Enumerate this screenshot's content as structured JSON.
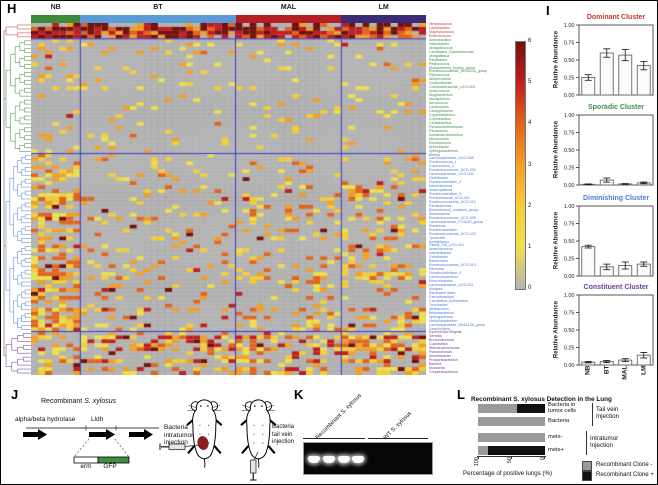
{
  "panels": {
    "h": "H",
    "i": "I",
    "j": "J",
    "k": "K",
    "l": "L"
  },
  "chart_data": {
    "heatmap": {
      "type": "heatmap",
      "seed": 1234,
      "value_range": [
        0,
        6
      ],
      "colorbar_ticks": [
        6,
        5,
        4,
        3,
        2,
        1,
        0
      ],
      "palette": [
        "#b4b4b4",
        "#efe04e",
        "#f5cf38",
        "#f2a028",
        "#e4651c",
        "#c21f1f",
        "#741010"
      ],
      "grid_color": "rgba(60,60,60,0.18)",
      "separator_color": "#3a3ad0",
      "groups": [
        {
          "label": "NB",
          "color": "#3e8a3c",
          "cols": 7
        },
        {
          "label": "BT",
          "color": "#5b9bd5",
          "cols": 22
        },
        {
          "label": "MAL",
          "color": "#b41f24",
          "cols": 15
        },
        {
          "label": "LM",
          "color": "#3b2a75",
          "cols": 12
        }
      ],
      "clusters": [
        {
          "name": "Dominant",
          "label_color": "#c43c35",
          "dendro_color": "#d46a64",
          "fill_prob": 0.96,
          "group_mult": [
            1,
            1,
            1,
            1
          ],
          "val_min": 3,
          "val_max": 6,
          "hot_prob": 0.25,
          "taxa": [
            "Streptococcus",
            "Lactobacillus",
            "Staphylococcus",
            "Enterococcus"
          ]
        },
        {
          "name": "Sporadic",
          "label_color": "#3f8f42",
          "dendro_color": "#6aa86d",
          "fill_prob": 0.09,
          "group_mult": [
            1.4,
            1.0,
            0.9,
            0.9
          ],
          "val_min": 1,
          "val_max": 3,
          "hot_prob": 0.1,
          "taxa": [
            "Actinobacillus",
            "Helicobacter",
            "Jeotgalicoccus",
            "Candidatus_Saccharimonas",
            "Jeotgalibaca",
            "Parvibacter",
            "Pediococcus",
            "[Eubacterium]_brachy_group",
            "Ruminococcaceae_NK4A214_group",
            "Peptococcus",
            "Alloprevotella",
            "Gordonibacter",
            "Coriobacteriaceae_UCG-002",
            "Anaerovorax",
            "Mogibacterium",
            "Mucispirillum",
            "Aerococcus",
            "Lactococcus",
            "Campylobacter",
            "Cryptobacterium",
            "Coprobacillus",
            "Cerasibacillus",
            "Pseudoxanthomonas",
            "Paracoccus",
            "Acetanaerobacterium",
            "Micrococcus",
            "Rhodococcus",
            "Arthrobacter",
            "Sphingobacterium"
          ]
        },
        {
          "name": "Diminishing",
          "label_color": "#4f7ad1",
          "dendro_color": "#7d9fe0",
          "fill_prob": 0.22,
          "group_mult": [
            2.3,
            0.75,
            0.95,
            1.25
          ],
          "val_min": 1,
          "val_max": 4,
          "hot_prob": 0.12,
          "taxa": [
            "Blautia",
            "Lachnospiraceae_UCG-008",
            "Ruminococcus_1",
            "Coprococcus_1",
            "Ruminococcaceae_UCG-009",
            "Lachnospiraceae_UCG-006",
            "Oscillibacter",
            "Ruminiclostridium_5",
            "Intestinimonas",
            "Anaeroplasma",
            "Ruminiclostridium_6",
            "Prevotellaceae_UCG-001",
            "Ruminococcaceae_UCG-010",
            "Parasutterella",
            "[Eubacterium]_nodatum_group",
            "Akkermansia",
            "Ruminococcaceae_UCG-005",
            "Lachnospiraceae_FCS020_group",
            "Roseburia",
            "Ruminiclostridium",
            "Ruminococcaceae_UCG-003",
            "Tyzzerella",
            "Acetatifactor",
            "Family_XIII_UCG-001",
            "Anaerotruncus",
            "Intestinibacter",
            "Odoribacter",
            "Bacteroides",
            "Ruminococcaceae_UCG-014",
            "Rikenella",
            "Ruminiclostridium_9",
            "Lachnoclostridium",
            "Enterorhabdus",
            "Lachnospiraceae_UCG-001",
            "Alistipes",
            "Parabacteroides",
            "Faecalibaculum",
            "Candidatus_Arthromitus",
            "Turicibacter",
            "Allobaculum",
            "Bifidobacterium",
            "Sphingomonas",
            "Methylobacterium",
            "Lachnospiraceae_NK4A136_group",
            "Desulfovibrio"
          ]
        },
        {
          "name": "Constituent",
          "label_color": "#6d3f93",
          "dendro_color": "#8f6ab0",
          "fill_prob": 0.4,
          "group_mult": [
            0.85,
            0.9,
            1.0,
            1.35
          ],
          "val_min": 1,
          "val_max": 5,
          "hot_prob": 0.15,
          "taxa": [
            "Escherichia-Shigella",
            "Serratia",
            "Brevundimonas",
            "Cupriavidus",
            "Stenotrophomonas",
            "Pseudomonas",
            "Acinetobacter",
            "Propionibacterium",
            "Bacillus",
            "Moraxella",
            "Chryseobacterium"
          ]
        }
      ]
    },
    "cluster_bars": [
      {
        "type": "bar",
        "title": "Dominant Cluster",
        "title_color": "#c0392b",
        "ylabel": "Relative Abundance",
        "categories": [
          "NB",
          "BT",
          "MAL",
          "LM"
        ],
        "values": [
          0.25,
          0.6,
          0.57,
          0.42
        ],
        "errors": [
          0.04,
          0.06,
          0.08,
          0.06
        ],
        "ylim": [
          0,
          1.0
        ],
        "yticks": [
          1.0,
          0.75,
          0.5,
          0.25,
          0.0
        ]
      },
      {
        "type": "bar",
        "title": "Sporadic Cluster",
        "title_color": "#3f8f42",
        "ylabel": "Relative Abundance",
        "categories": [
          "NB",
          "BT",
          "MAL",
          "LM"
        ],
        "values": [
          0.01,
          0.07,
          0.015,
          0.03
        ],
        "errors": [
          0.005,
          0.03,
          0.005,
          0.012
        ],
        "ylim": [
          0,
          1.0
        ],
        "yticks": [
          1.0,
          0.75,
          0.5,
          0.25,
          0.0
        ]
      },
      {
        "type": "bar",
        "title": "Diminishing Cluster",
        "title_color": "#4f7ad1",
        "ylabel": "Relative Abundance",
        "categories": [
          "NB",
          "BT",
          "MAL",
          "LM"
        ],
        "values": [
          0.42,
          0.13,
          0.15,
          0.17
        ],
        "errors": [
          0.02,
          0.04,
          0.05,
          0.03
        ],
        "ylim": [
          0,
          1.0
        ],
        "yticks": [
          1.0,
          0.75,
          0.5,
          0.25,
          0.0
        ]
      },
      {
        "type": "bar",
        "title": "Constituent Cluster",
        "title_color": "#6d3f93",
        "ylabel": "Relative Abundance",
        "categories": [
          "NB",
          "BT",
          "MAL",
          "LM"
        ],
        "values": [
          0.04,
          0.05,
          0.07,
          0.14
        ],
        "errors": [
          0.01,
          0.015,
          0.02,
          0.04
        ],
        "ylim": [
          0,
          1.0
        ],
        "yticks": [
          1.0,
          0.75,
          0.5,
          0.25,
          0.0
        ]
      }
    ],
    "lung_detection": {
      "type": "stacked_bar_h",
      "title": "Recombinant S. xylosus Detection in the Lung",
      "xlabel": "Percentage of positive lungs (%)",
      "xticks": [
        100,
        50,
        0
      ],
      "rows": [
        {
          "label": "Bacteria in tumor cells",
          "clone_neg": 58,
          "clone_pos": 42
        },
        {
          "label": "Bacteria",
          "clone_neg": 100,
          "clone_pos": 0
        },
        {
          "label": "mets-",
          "clone_neg": 100,
          "clone_pos": 0
        },
        {
          "label": "mets+",
          "clone_neg": 15,
          "clone_pos": 85
        }
      ],
      "groups": [
        {
          "label": "Tail vein\nInjection",
          "rows": [
            0,
            1
          ]
        },
        {
          "label": "Intratumor\nInjection",
          "rows": [
            2,
            3
          ]
        }
      ],
      "legend": [
        {
          "label": "Recombinant Clone -",
          "color": "#9a9a9a"
        },
        {
          "label": "Recombinant Clone +",
          "color": "#111111"
        }
      ],
      "neg_color": "#9a9a9a",
      "pos_color": "#111111"
    }
  },
  "panel_j": {
    "title_prefix": "Recombinant ",
    "species": "S. xylosus",
    "gene1": "alpha/beta hydrolase",
    "gene2": "Lldh",
    "erm": "erm",
    "gfp": "GFP",
    "intratumor": "Bacteria\nintratumor\ninjection",
    "tailvein": "Bacteria\ntail vein\ninjection",
    "gfp_color": "#3e8e3e"
  },
  "panel_k": {
    "group1": "Recombinant S. xylosus",
    "group2": "WT S. xylosus",
    "bands_group1": 4,
    "bands_group2": 0
  }
}
